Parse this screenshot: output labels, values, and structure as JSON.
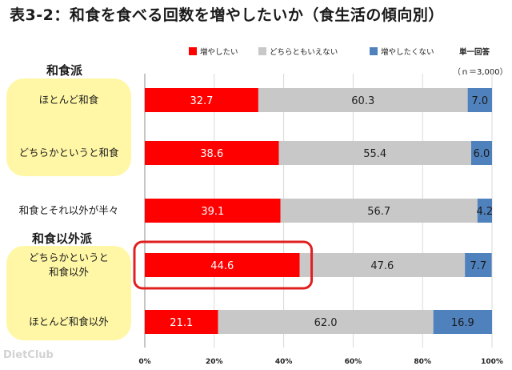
{
  "chart_data": {
    "type": "bar",
    "orientation": "horizontal",
    "stacked": true,
    "title": "表3-2：和食を食べる回数を増やしたいか（食生活の傾向別）",
    "note": "単一回答",
    "sample_size": "（ｎ＝3,000）",
    "groups": [
      {
        "label": "和食派"
      },
      {
        "label": "和食以外派"
      }
    ],
    "categories": [
      "ほとんど和食",
      "どちらかというと和食",
      "和食とそれ以外が半々",
      "どちらかというと和食以外",
      "ほとんど和食以外"
    ],
    "category_lines": [
      [
        "ほとんど和食"
      ],
      [
        "どちらかというと和食"
      ],
      [
        "和食とそれ以外が半々"
      ],
      [
        "どちらかというと",
        "和食以外"
      ],
      [
        "ほとんど和食以外"
      ]
    ],
    "series": [
      {
        "name": "増やしたい",
        "color": "#ff0000",
        "label_color": "#ffffff",
        "values": [
          32.7,
          38.6,
          39.1,
          44.6,
          21.1
        ]
      },
      {
        "name": "どちらともいえない",
        "color": "#c8c8c8",
        "label_color": "#222222",
        "values": [
          60.3,
          55.4,
          56.7,
          47.6,
          62.0
        ]
      },
      {
        "name": "増やしたくない",
        "color": "#4f81bd",
        "label_color": "#1a1a1a",
        "values": [
          7.0,
          6.0,
          4.2,
          7.7,
          16.9
        ]
      }
    ],
    "xlim": [
      0,
      100
    ],
    "xticks": [
      "0%",
      "20%",
      "40%",
      "60%",
      "80%",
      "100%"
    ],
    "highlighted_category": "どちらかというと和食以外",
    "highlight_color": "#e02020",
    "grid": true,
    "legend_position": "top"
  },
  "watermark": "DietClub"
}
